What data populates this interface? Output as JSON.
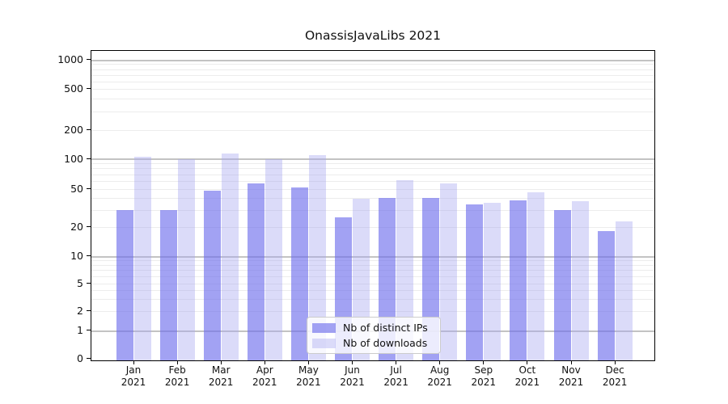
{
  "chart_data": {
    "type": "bar",
    "title": "OnassisJavaLibs 2021",
    "categories": [
      "Jan 2021",
      "Feb 2021",
      "Mar 2021",
      "Apr 2021",
      "May 2021",
      "Jun 2021",
      "Jul 2021",
      "Aug 2021",
      "Sep 2021",
      "Oct 2021",
      "Nov 2021",
      "Dec 2021"
    ],
    "series": [
      {
        "name": "Nb of distinct IPs",
        "color": "rgba(108,108,236,0.63)",
        "values": [
          30,
          30,
          48,
          56,
          51,
          25,
          40,
          40,
          34,
          38,
          30,
          18
        ]
      },
      {
        "name": "Nb of downloads",
        "color": "rgba(165,165,240,0.40)",
        "values": [
          105,
          100,
          114,
          100,
          110,
          39,
          61,
          57,
          36,
          46,
          37,
          23
        ]
      }
    ],
    "yscale": "symlog",
    "yticks": [
      0,
      1,
      2,
      5,
      10,
      20,
      50,
      100,
      200,
      500,
      1000
    ],
    "ylim": [
      0,
      1300
    ],
    "xlabel": "",
    "ylabel": "",
    "grid": "horizontal major and log-minor gridlines",
    "legend_position": "inside bottom-center"
  },
  "colors": {
    "background": "#ffffff",
    "axis": "#000000",
    "grid_major": "#c3c3c3",
    "grid_minor": "#ececec",
    "text": "#111111",
    "legend_border": "#cccccc",
    "legend_background": "rgba(255,255,255,0.8)"
  }
}
